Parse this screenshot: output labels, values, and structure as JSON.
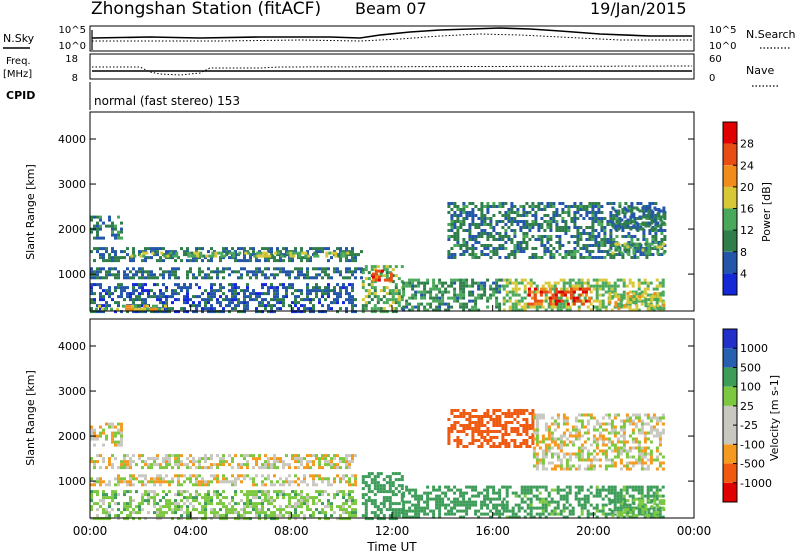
{
  "header": {
    "station": "Zhongshan Station (fitACF)",
    "beam": "Beam 07",
    "date": "19/Jan/2015"
  },
  "status_panels": {
    "nsky_label": "N.Sky",
    "nsky_ticks": [
      "10^5",
      "10^0"
    ],
    "nsearch_label": "N.Search",
    "nsearch_ticks": [
      "10^5",
      "10^0"
    ],
    "freq_label": "Freq.",
    "freq_unit": "[MHz]",
    "freq_ticks": [
      "18",
      "8"
    ],
    "nave_label": "Nave",
    "nave_ticks": [
      "60",
      "0"
    ],
    "cpid_label": "CPID",
    "cpid_text": "normal (fast stereo) 153"
  },
  "time_axis": {
    "title": "Time UT",
    "ticks": [
      "00:00",
      "04:00",
      "08:00",
      "12:00",
      "16:00",
      "20:00",
      "00:00"
    ]
  },
  "colors": {
    "power": [
      "#1428d8",
      "#2356a8",
      "#2f7e4a",
      "#4aa85a",
      "#d8c838",
      "#f08c1c",
      "#e84e14",
      "#e00000"
    ],
    "velocity": [
      "#e00000",
      "#f05a10",
      "#f49a20",
      "#c8c8c0",
      "#c8c8c0",
      "#7cc840",
      "#3c9c58",
      "#2860b0",
      "#2030c8"
    ]
  },
  "chart_data": [
    {
      "type": "heatmap",
      "ylabel": "Slant Range [km]",
      "yticks": [
        "4000",
        "3000",
        "2000",
        "1000"
      ],
      "ylim": [
        180,
        4600
      ],
      "xlim": [
        0,
        24
      ],
      "colorbar_title": "Power [dB]",
      "colorbar_ticks": [
        "28",
        "24",
        "20",
        "16",
        "12",
        "8",
        "4"
      ],
      "colorbar_range": [
        0,
        32
      ],
      "bands": [
        {
          "t0": 0.0,
          "t1": 10.8,
          "r0": 1300,
          "r1": 1600,
          "value": 8
        },
        {
          "t0": 0.0,
          "t1": 10.8,
          "r0": 900,
          "r1": 1150,
          "value": 8
        },
        {
          "t0": 0.0,
          "t1": 10.6,
          "r0": 200,
          "r1": 800,
          "value": 6
        },
        {
          "t0": 0.0,
          "t1": 1.2,
          "r0": 1800,
          "r1": 2300,
          "value": 9
        },
        {
          "t0": 1.6,
          "t1": 10.4,
          "r0": 1420,
          "r1": 1500,
          "value": 15
        },
        {
          "t0": 0.2,
          "t1": 3.0,
          "r0": 200,
          "r1": 320,
          "value": 18
        },
        {
          "t0": 10.8,
          "t1": 12.4,
          "r0": 200,
          "r1": 1200,
          "value": 14
        },
        {
          "t0": 11.2,
          "t1": 12.0,
          "r0": 850,
          "r1": 1100,
          "value": 26
        },
        {
          "t0": 12.4,
          "t1": 16.4,
          "r0": 200,
          "r1": 900,
          "value": 11
        },
        {
          "t0": 14.2,
          "t1": 22.8,
          "r0": 1400,
          "r1": 2600,
          "value": 9
        },
        {
          "t0": 16.4,
          "t1": 22.8,
          "r0": 200,
          "r1": 900,
          "value": 16
        },
        {
          "t0": 17.4,
          "t1": 19.8,
          "r0": 350,
          "r1": 700,
          "value": 26
        },
        {
          "t0": 20.6,
          "t1": 22.8,
          "r0": 1500,
          "r1": 1700,
          "value": 14
        },
        {
          "t0": 20.6,
          "t1": 22.8,
          "r0": 2000,
          "r1": 2500,
          "value": 8
        },
        {
          "t0": 20.6,
          "t1": 22.8,
          "r0": 250,
          "r1": 600,
          "value": 18
        }
      ]
    },
    {
      "type": "heatmap",
      "ylabel": "Slant Range [km]",
      "yticks": [
        "4000",
        "3000",
        "2000",
        "1000"
      ],
      "ylim": [
        180,
        4600
      ],
      "xlim": [
        0,
        24
      ],
      "colorbar_title": "Velocity [m s-1]",
      "colorbar_ticks": [
        "1000",
        "500",
        "100",
        "25",
        "-25",
        "-100",
        "-500",
        "-1000"
      ],
      "colorbar_range": [
        -1000,
        1000
      ],
      "bands": [
        {
          "t0": 0.0,
          "t1": 10.6,
          "r0": 1300,
          "r1": 1600,
          "value": 0
        },
        {
          "t0": 0.0,
          "t1": 10.6,
          "r0": 900,
          "r1": 1150,
          "value": 0
        },
        {
          "t0": 0.0,
          "t1": 10.6,
          "r0": 200,
          "r1": 800,
          "value": 60
        },
        {
          "t0": 0.0,
          "t1": 1.2,
          "r0": 1800,
          "r1": 2300,
          "value": 0
        },
        {
          "t0": 10.8,
          "t1": 12.4,
          "r0": 200,
          "r1": 1200,
          "value": 300
        },
        {
          "t0": 12.4,
          "t1": 16.4,
          "r0": 200,
          "r1": 900,
          "value": 200
        },
        {
          "t0": 14.2,
          "t1": 17.6,
          "r0": 1800,
          "r1": 2600,
          "value": -300
        },
        {
          "t0": 17.6,
          "t1": 22.8,
          "r0": 1300,
          "r1": 2500,
          "value": 0
        },
        {
          "t0": 16.4,
          "t1": 22.8,
          "r0": 200,
          "r1": 900,
          "value": 150
        },
        {
          "t0": 20.6,
          "t1": 22.8,
          "r0": 250,
          "r1": 600,
          "value": 80
        }
      ]
    }
  ]
}
